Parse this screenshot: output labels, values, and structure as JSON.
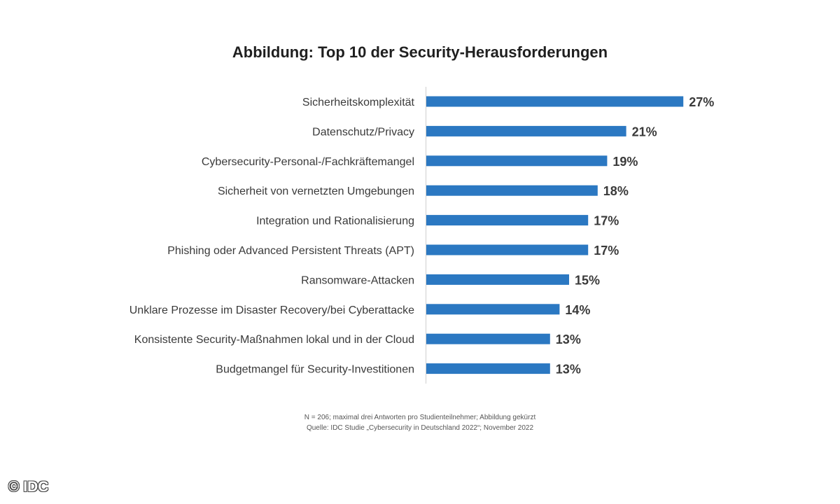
{
  "chart_data": {
    "type": "bar",
    "orientation": "horizontal",
    "title": "Abbildung: Top 10 der Security-Herausforderungen",
    "categories": [
      "Sicherheitskomplexität",
      "Datenschutz/Privacy",
      "Cybersecurity-Personal-/Fachkräftemangel",
      "Sicherheit von vernetzten Umgebungen",
      "Integration und Rationalisierung",
      "Phishing oder Advanced Persistent Threats (APT)",
      "Ransomware-Attacken",
      "Unklare Prozesse im Disaster Recovery/bei Cyberattacke",
      "Konsistente Security-Maßnahmen lokal und in der Cloud",
      "Budgetmangel für Security-Investitionen"
    ],
    "values": [
      27,
      21,
      19,
      18,
      17,
      17,
      15,
      14,
      13,
      13
    ],
    "value_labels": [
      "27%",
      "21%",
      "19%",
      "18%",
      "17%",
      "17%",
      "15%",
      "14%",
      "13%",
      "13%"
    ],
    "value_unit": "%",
    "bar_color": "#2b78c2",
    "grid": false,
    "xlim": [
      0,
      30
    ]
  },
  "notes": {
    "line1": "N = 206; maximal drei Antworten pro Studienteilnehmer; Abbildung gekürzt",
    "line2": "Quelle: IDC Studie „Cybersecurity in Deutschland 2022“; November 2022"
  },
  "copyright": "© IDC"
}
